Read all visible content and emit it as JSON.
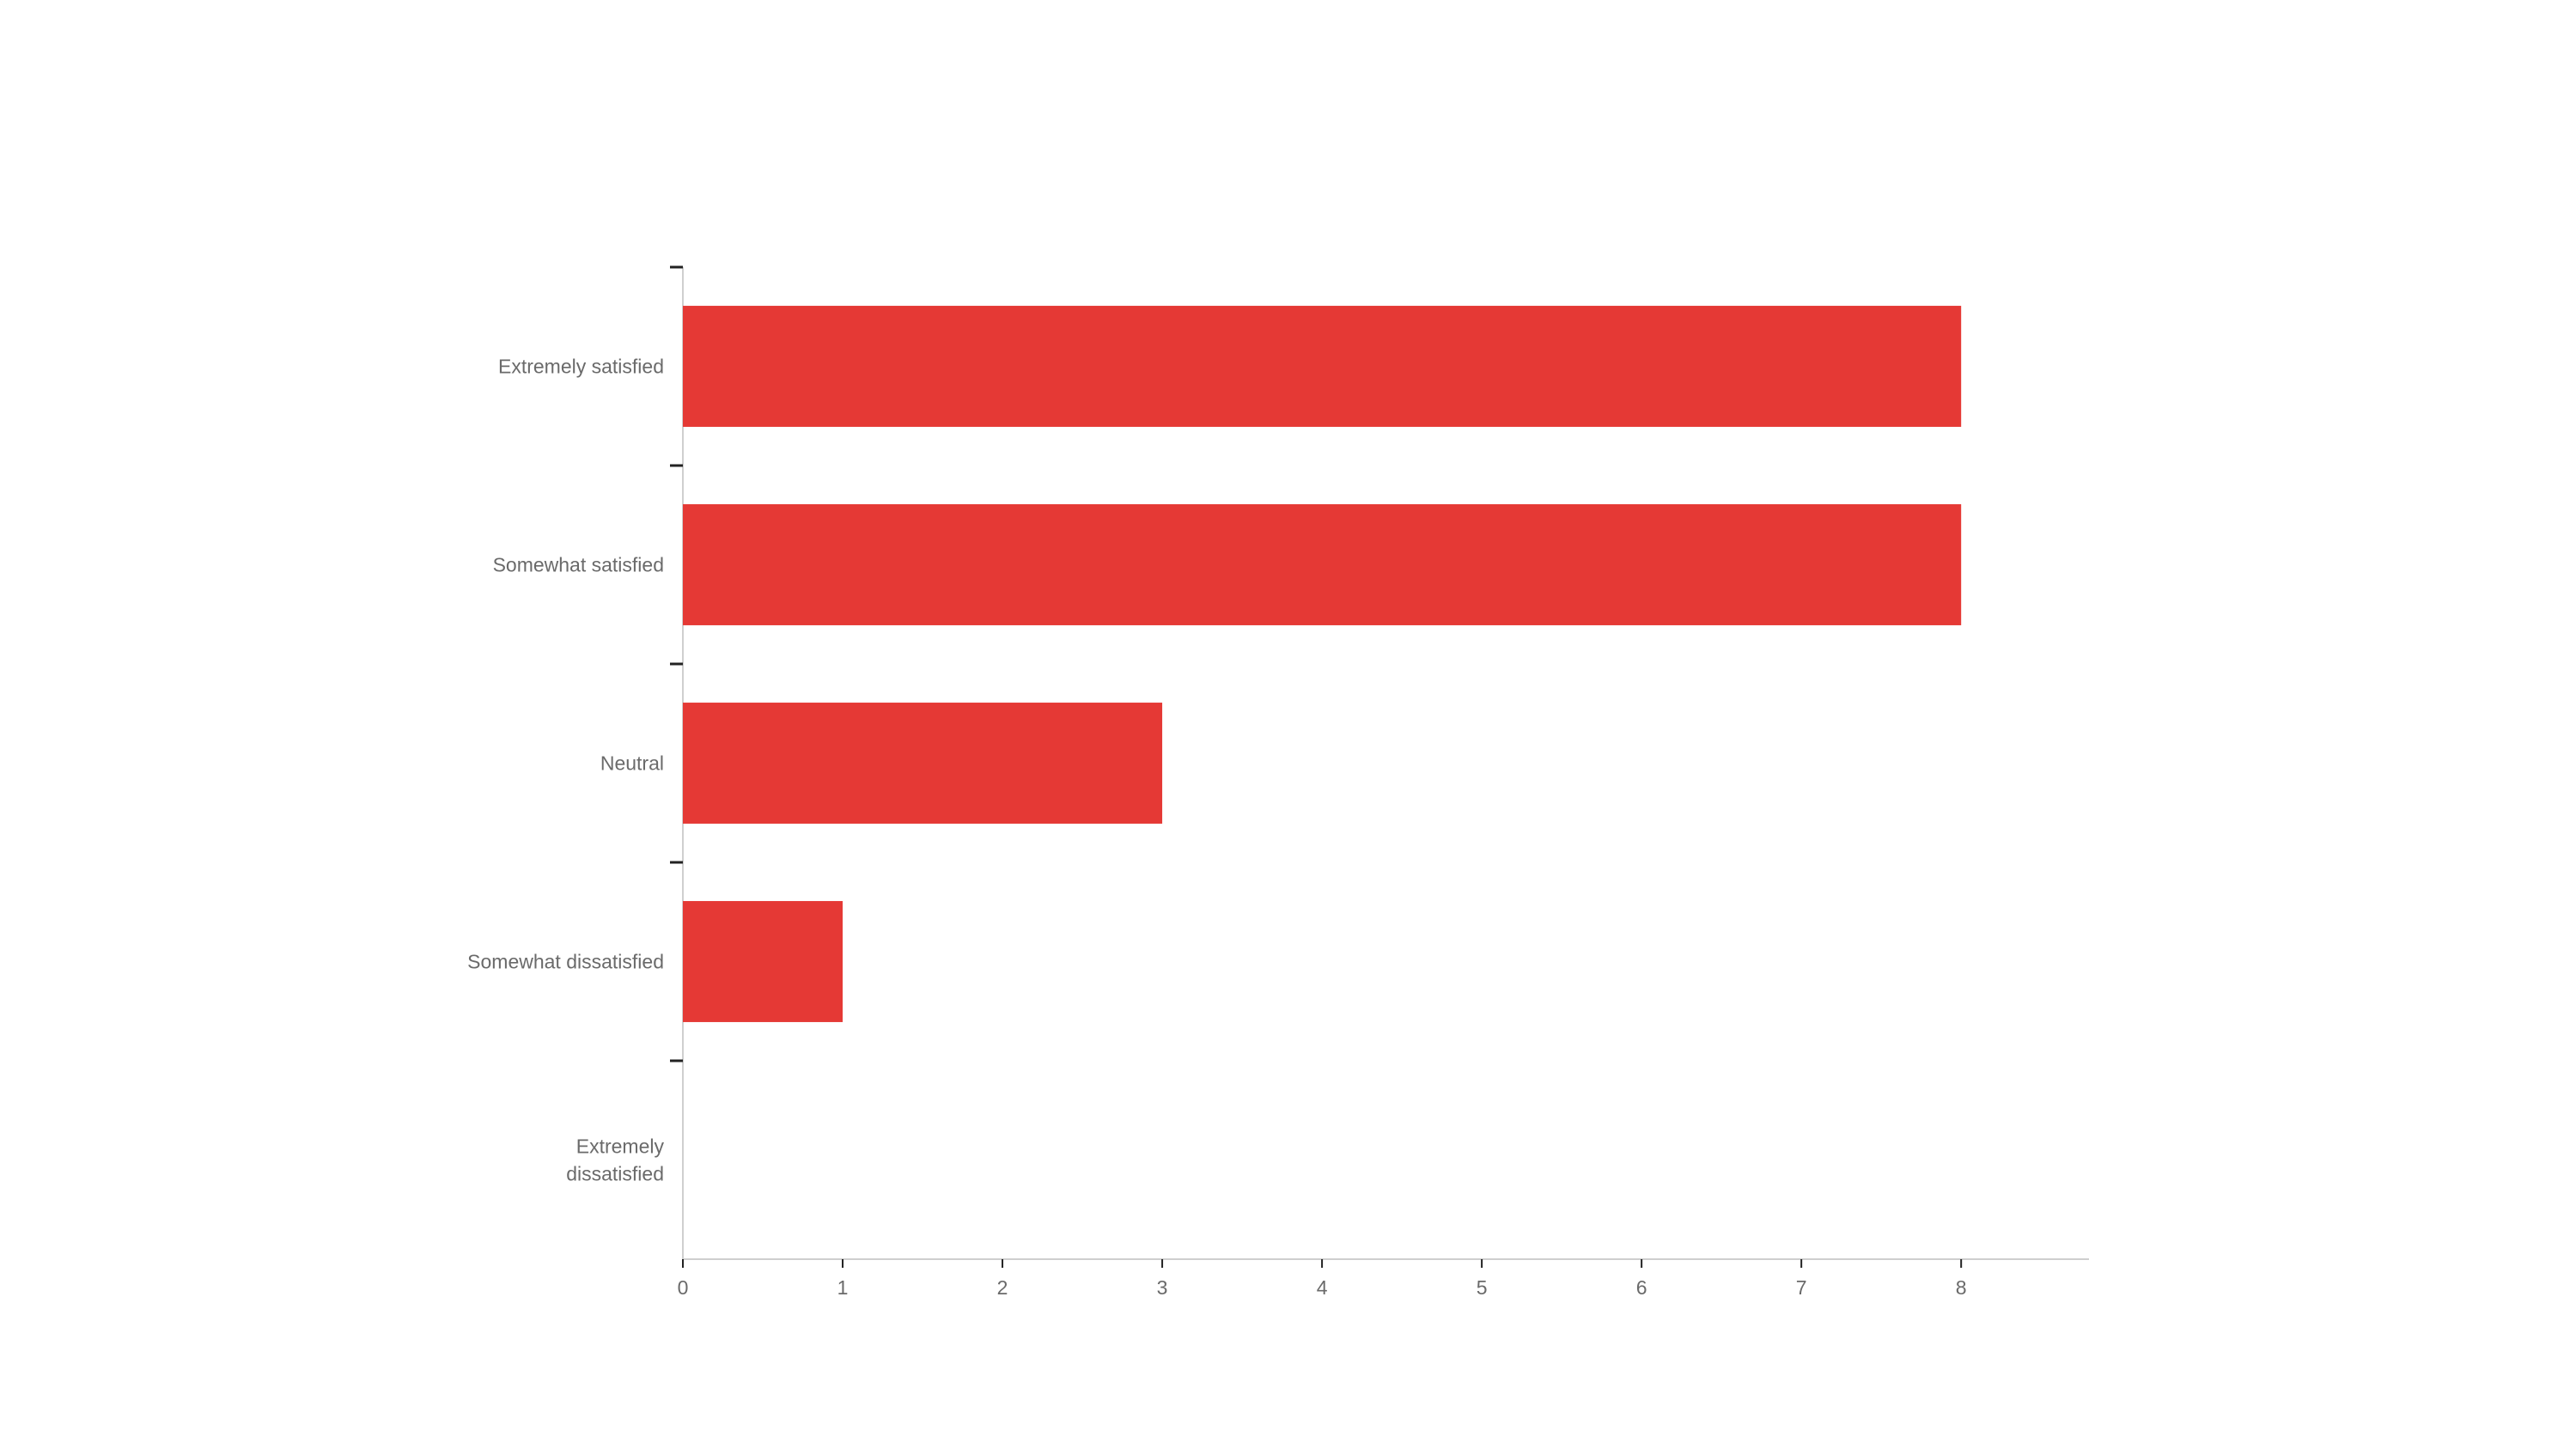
{
  "chart_data": {
    "type": "bar",
    "orientation": "horizontal",
    "title": "",
    "xlabel": "",
    "ylabel": "",
    "categories": [
      [
        "Extremely satisfied"
      ],
      [
        "Somewhat satisfied"
      ],
      [
        "Neutral"
      ],
      [
        "Somewhat dissatisfied"
      ],
      [
        "Extremely",
        "dissatisfied"
      ]
    ],
    "values": [
      8,
      8,
      3,
      1,
      0
    ],
    "xlim": [
      0,
      8.8
    ],
    "x_ticks": [
      "0",
      "1",
      "2",
      "3",
      "4",
      "5",
      "6",
      "7",
      "8"
    ],
    "grid": false,
    "legend": "none",
    "bar_color": "#e53935"
  }
}
